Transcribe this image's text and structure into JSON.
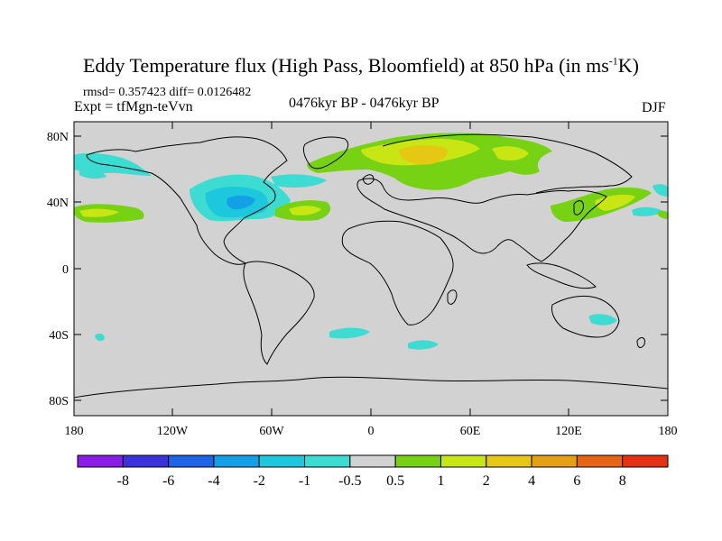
{
  "title": {
    "main": "Eddy Temperature flux (High Pass, Bloomfield) at 850 hPa (in ms",
    "sup": "-1",
    "tail": "K)"
  },
  "stats": "rmsd= 0.357423 diff= 0.0126482",
  "expt": "Expt = tfMgn-teVvn",
  "period": "0476kyr BP - 0476kyr BP",
  "season": "DJF",
  "lat_ticks": [
    "80N",
    "40N",
    "0",
    "40S",
    "80S"
  ],
  "lon_ticks": [
    "180",
    "120W",
    "60W",
    "0",
    "60E",
    "120E",
    "180"
  ],
  "colorbar": {
    "labels": [
      "-8",
      "-6",
      "-4",
      "-2",
      "-1",
      "-0.5",
      "0.5",
      "1",
      "2",
      "4",
      "6",
      "8"
    ],
    "colors": [
      "#8a1ee6",
      "#3c32dc",
      "#1e64e6",
      "#14a0e6",
      "#1ec8dc",
      "#3cdcd2",
      "#d2d2d2",
      "#78d214",
      "#c8e614",
      "#e6c814",
      "#e6a014",
      "#e66414",
      "#e63214"
    ]
  },
  "map_colors": {
    "ocean": "#d2d2d2",
    "coast": "#000000"
  }
}
